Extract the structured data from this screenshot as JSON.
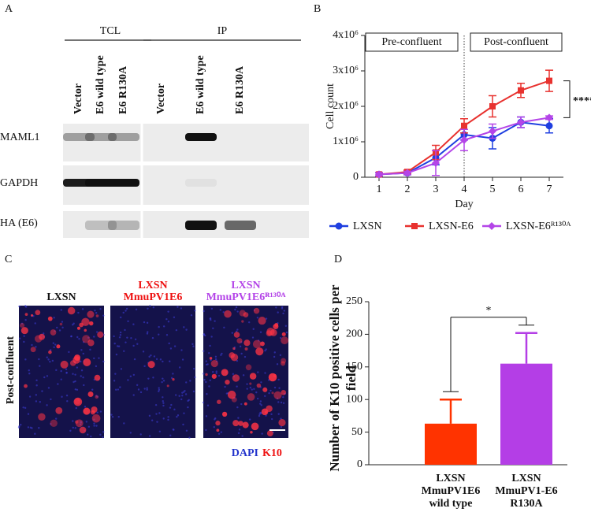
{
  "panel_labels": [
    "A",
    "B",
    "C",
    "D"
  ],
  "blot": {
    "groups": [
      "TCL",
      "IP"
    ],
    "lanes": [
      "Vector",
      "E6 wild type",
      "E6 R130A",
      "Vector",
      "E6 wild type",
      "E6 R130A"
    ],
    "rows": [
      "MAML1",
      "GAPDH",
      "HA (E6)"
    ]
  },
  "micrographs": {
    "titles": [
      [
        "LXSN"
      ],
      [
        "LXSN",
        "MmuPV1E6"
      ],
      [
        "LXSN",
        "MmuPV1E6ᴿ¹³⁰ᴬ"
      ]
    ],
    "side_label": "Post-confluent",
    "stains": [
      "DAPI",
      "K10"
    ]
  },
  "chart_data": [
    {
      "type": "line",
      "y_label": "Cell count",
      "x_label": "Day",
      "x": [
        1,
        2,
        3,
        4,
        5,
        6,
        7
      ],
      "xlim": [
        0.5,
        7.5
      ],
      "xticks": [
        1,
        2,
        3,
        4,
        5,
        6,
        7
      ],
      "ylim": [
        0,
        4000000
      ],
      "yticks": [
        0,
        {
          "value": 1000000,
          "label": "1x10⁶"
        },
        {
          "value": 2000000,
          "label": "2x10⁶"
        },
        {
          "value": 3000000,
          "label": "3x10⁶"
        },
        {
          "value": 4000000,
          "label": "4x10⁶"
        }
      ],
      "series": [
        {
          "name": "LXSN",
          "color": "#1f3fe0",
          "marker": "circle",
          "values": [
            80000,
            120000,
            550000,
            1200000,
            1100000,
            1550000,
            1450000
          ],
          "errors": [
            50000,
            50000,
            200000,
            150000,
            300000,
            150000,
            200000
          ]
        },
        {
          "name": "LXSN-E6",
          "color": "#e8322f",
          "marker": "square",
          "values": [
            80000,
            150000,
            700000,
            1450000,
            2000000,
            2450000,
            2720000
          ],
          "errors": [
            50000,
            50000,
            200000,
            200000,
            300000,
            200000,
            300000
          ]
        },
        {
          "name": "LXSN-E6ᴿ¹³⁰ᴬ",
          "color": "#b445e8",
          "marker": "diamond",
          "values": [
            80000,
            120000,
            400000,
            1050000,
            1300000,
            1550000,
            1680000
          ],
          "errors": [
            50000,
            50000,
            350000,
            300000,
            200000,
            150000,
            50000
          ]
        }
      ],
      "annotations": {
        "phases": [
          "Pre-confluent",
          "Post-confluent"
        ],
        "divider_x": 4,
        "significance": "****"
      },
      "legend": "bottom"
    },
    {
      "type": "bar",
      "y_label": "Number of K10 positive cells per field",
      "categories": [
        "LXSN\nMmuPV1E6\nwild type",
        "LXSN\nMmuPV1-E6\nR130A"
      ],
      "values": [
        63,
        155
      ],
      "errors": [
        37,
        47
      ],
      "colors": [
        "#ff3300",
        "#b43ee6"
      ],
      "ylim": [
        0,
        250
      ],
      "yticks": [
        0,
        50,
        100,
        150,
        200,
        250
      ],
      "significance": "*"
    }
  ]
}
